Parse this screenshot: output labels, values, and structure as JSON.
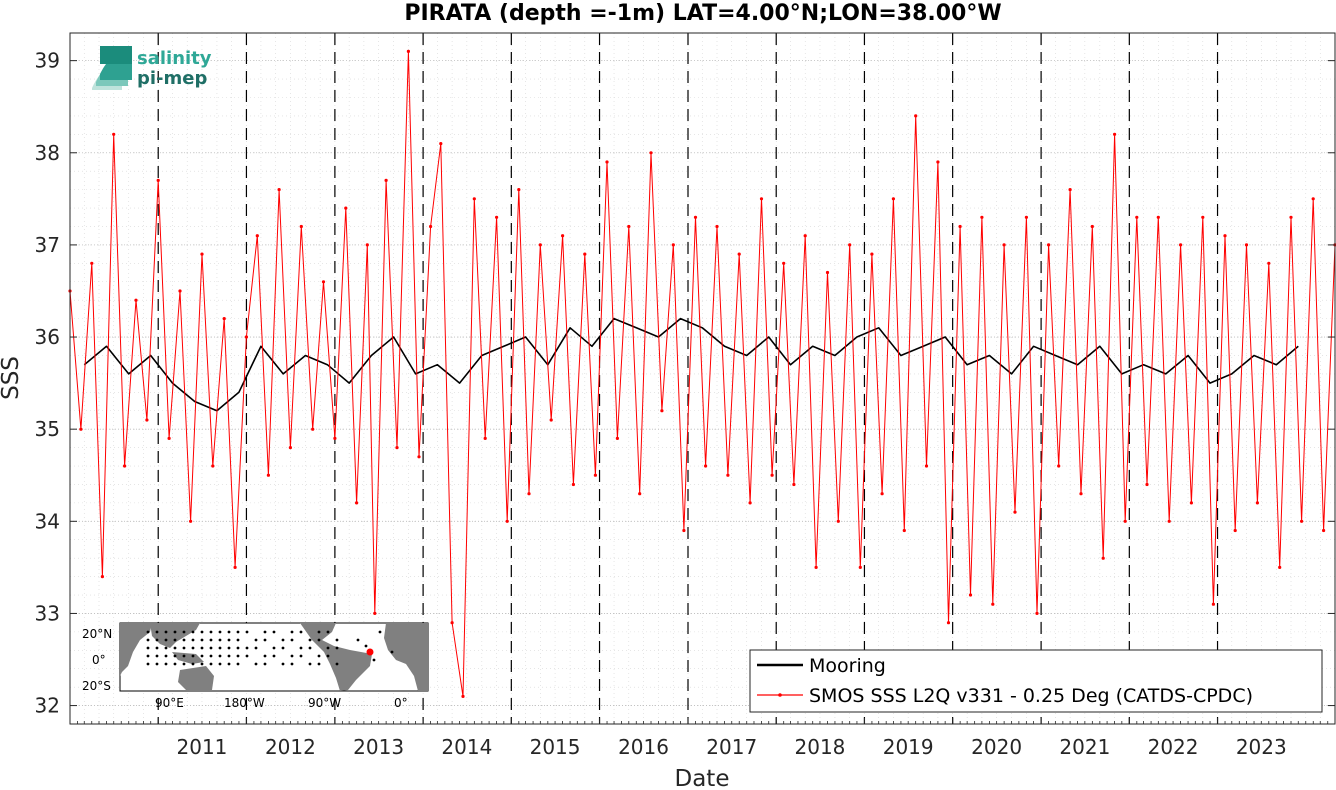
{
  "chart_data": {
    "type": "line",
    "title": "PIRATA (depth =-1m) LAT=4.00°N;LON=38.00°W",
    "xlabel": "Date",
    "ylabel": "SSS",
    "xlim": [
      "2010-01-01",
      "2024-05-01"
    ],
    "ylim": [
      31.8,
      39.3
    ],
    "x_ticks": [
      "2011",
      "2012",
      "2013",
      "2014",
      "2015",
      "2016",
      "2017",
      "2018",
      "2019",
      "2020",
      "2021",
      "2022",
      "2023"
    ],
    "y_ticks": [
      32,
      33,
      34,
      35,
      36,
      37,
      38,
      39
    ],
    "grid": true,
    "year_separators": "dashed vertical lines at each January 1st",
    "legend_position": "bottom-right",
    "series": [
      {
        "name": "Mooring",
        "color": "#000000",
        "style": "solid line",
        "points": [
          [
            "2010-03-01",
            35.7
          ],
          [
            "2010-06-01",
            35.9
          ],
          [
            "2010-09-01",
            35.6
          ],
          [
            "2010-12-01",
            35.8
          ],
          [
            "2011-03-01",
            35.5
          ],
          [
            "2011-06-01",
            35.3
          ],
          [
            "2011-09-01",
            35.2
          ],
          [
            "2011-12-01",
            35.4
          ],
          [
            "2012-03-01",
            35.9
          ],
          [
            "2012-06-01",
            35.6
          ],
          [
            "2012-09-01",
            35.8
          ],
          [
            "2012-12-01",
            35.7
          ],
          [
            "2013-03-01",
            35.5
          ],
          [
            "2013-06-01",
            35.8
          ],
          [
            "2013-09-01",
            36.0
          ],
          [
            "2013-12-01",
            35.6
          ],
          [
            "2014-03-01",
            35.7
          ],
          [
            "2014-06-01",
            35.5
          ],
          [
            "2014-09-01",
            35.8
          ],
          [
            "2014-12-01",
            35.9
          ],
          [
            "2015-03-01",
            36.0
          ],
          [
            "2015-06-01",
            35.7
          ],
          [
            "2015-09-01",
            36.1
          ],
          [
            "2015-12-01",
            35.9
          ],
          [
            "2016-03-01",
            36.2
          ],
          [
            "2016-06-01",
            36.1
          ],
          [
            "2016-09-01",
            36.0
          ],
          [
            "2016-12-01",
            36.2
          ],
          [
            "2017-03-01",
            36.1
          ],
          [
            "2017-06-01",
            35.9
          ],
          [
            "2017-09-01",
            35.8
          ],
          [
            "2017-12-01",
            36.0
          ],
          [
            "2018-03-01",
            35.7
          ],
          [
            "2018-06-01",
            35.9
          ],
          [
            "2018-09-01",
            35.8
          ],
          [
            "2018-12-01",
            36.0
          ],
          [
            "2019-03-01",
            36.1
          ],
          [
            "2019-06-01",
            35.8
          ],
          [
            "2019-09-01",
            35.9
          ],
          [
            "2019-12-01",
            36.0
          ],
          [
            "2020-03-01",
            35.7
          ],
          [
            "2020-06-01",
            35.8
          ],
          [
            "2020-09-01",
            35.6
          ],
          [
            "2020-12-01",
            35.9
          ],
          [
            "2021-03-01",
            35.8
          ],
          [
            "2021-06-01",
            35.7
          ],
          [
            "2021-09-01",
            35.9
          ],
          [
            "2021-12-01",
            35.6
          ],
          [
            "2022-03-01",
            35.7
          ],
          [
            "2022-06-01",
            35.6
          ],
          [
            "2022-09-01",
            35.8
          ],
          [
            "2022-12-01",
            35.5
          ],
          [
            "2023-03-01",
            35.6
          ],
          [
            "2023-06-01",
            35.8
          ],
          [
            "2023-09-01",
            35.7
          ],
          [
            "2023-12-01",
            35.9
          ]
        ]
      },
      {
        "name": "SMOS SSS L2Q v331 - 0.25 Deg (CATDS-CPDC)",
        "color": "#ff0000",
        "style": "solid line with point markers",
        "points": [
          [
            "2010-01-01",
            36.5
          ],
          [
            "2010-02-15",
            35.0
          ],
          [
            "2010-04-01",
            36.8
          ],
          [
            "2010-05-15",
            33.4
          ],
          [
            "2010-07-01",
            38.2
          ],
          [
            "2010-08-15",
            34.6
          ],
          [
            "2010-10-01",
            36.4
          ],
          [
            "2010-11-15",
            35.1
          ],
          [
            "2011-01-01",
            37.7
          ],
          [
            "2011-02-15",
            34.9
          ],
          [
            "2011-04-01",
            36.5
          ],
          [
            "2011-05-15",
            34.0
          ],
          [
            "2011-07-01",
            36.9
          ],
          [
            "2011-08-15",
            34.6
          ],
          [
            "2011-10-01",
            36.2
          ],
          [
            "2011-11-15",
            33.5
          ],
          [
            "2012-01-01",
            36.0
          ],
          [
            "2012-02-15",
            37.1
          ],
          [
            "2012-04-01",
            34.5
          ],
          [
            "2012-05-15",
            37.6
          ],
          [
            "2012-07-01",
            34.8
          ],
          [
            "2012-08-15",
            37.2
          ],
          [
            "2012-10-01",
            35.0
          ],
          [
            "2012-11-15",
            36.6
          ],
          [
            "2013-01-01",
            34.9
          ],
          [
            "2013-02-15",
            37.4
          ],
          [
            "2013-04-01",
            34.2
          ],
          [
            "2013-05-15",
            37.0
          ],
          [
            "2013-06-15",
            33.0
          ],
          [
            "2013-08-01",
            37.7
          ],
          [
            "2013-09-15",
            34.8
          ],
          [
            "2013-11-01",
            39.1
          ],
          [
            "2013-12-15",
            34.7
          ],
          [
            "2014-02-01",
            37.2
          ],
          [
            "2014-03-15",
            38.1
          ],
          [
            "2014-05-01",
            32.9
          ],
          [
            "2014-06-15",
            32.1
          ],
          [
            "2014-08-01",
            37.5
          ],
          [
            "2014-09-15",
            34.9
          ],
          [
            "2014-11-01",
            37.3
          ],
          [
            "2014-12-15",
            34.0
          ],
          [
            "2015-02-01",
            37.6
          ],
          [
            "2015-03-15",
            34.3
          ],
          [
            "2015-05-01",
            37.0
          ],
          [
            "2015-06-15",
            35.1
          ],
          [
            "2015-08-01",
            37.1
          ],
          [
            "2015-09-15",
            34.4
          ],
          [
            "2015-11-01",
            36.9
          ],
          [
            "2015-12-15",
            34.5
          ],
          [
            "2016-02-01",
            37.9
          ],
          [
            "2016-03-15",
            34.9
          ],
          [
            "2016-05-01",
            37.2
          ],
          [
            "2016-06-15",
            34.3
          ],
          [
            "2016-08-01",
            38.0
          ],
          [
            "2016-09-15",
            35.2
          ],
          [
            "2016-11-01",
            37.0
          ],
          [
            "2016-12-15",
            33.9
          ],
          [
            "2017-02-01",
            37.3
          ],
          [
            "2017-03-15",
            34.6
          ],
          [
            "2017-05-01",
            37.2
          ],
          [
            "2017-06-15",
            34.5
          ],
          [
            "2017-08-01",
            36.9
          ],
          [
            "2017-09-15",
            34.2
          ],
          [
            "2017-11-01",
            37.5
          ],
          [
            "2017-12-15",
            34.5
          ],
          [
            "2018-02-01",
            36.8
          ],
          [
            "2018-03-15",
            34.4
          ],
          [
            "2018-05-01",
            37.1
          ],
          [
            "2018-06-15",
            33.5
          ],
          [
            "2018-08-01",
            36.7
          ],
          [
            "2018-09-15",
            34.0
          ],
          [
            "2018-11-01",
            37.0
          ],
          [
            "2018-12-15",
            33.5
          ],
          [
            "2019-02-01",
            36.9
          ],
          [
            "2019-03-15",
            34.3
          ],
          [
            "2019-05-01",
            37.5
          ],
          [
            "2019-06-15",
            33.9
          ],
          [
            "2019-08-01",
            38.4
          ],
          [
            "2019-09-15",
            34.6
          ],
          [
            "2019-11-01",
            37.9
          ],
          [
            "2019-12-15",
            32.9
          ],
          [
            "2020-02-01",
            37.2
          ],
          [
            "2020-03-15",
            33.2
          ],
          [
            "2020-05-01",
            37.3
          ],
          [
            "2020-06-15",
            33.1
          ],
          [
            "2020-08-01",
            37.0
          ],
          [
            "2020-09-15",
            34.1
          ],
          [
            "2020-11-01",
            37.3
          ],
          [
            "2020-12-15",
            33.0
          ],
          [
            "2021-02-01",
            37.0
          ],
          [
            "2021-03-15",
            34.6
          ],
          [
            "2021-05-01",
            37.6
          ],
          [
            "2021-06-15",
            34.3
          ],
          [
            "2021-08-01",
            37.2
          ],
          [
            "2021-09-15",
            33.6
          ],
          [
            "2021-11-01",
            38.2
          ],
          [
            "2021-12-15",
            34.0
          ],
          [
            "2022-02-01",
            37.3
          ],
          [
            "2022-03-15",
            34.4
          ],
          [
            "2022-05-01",
            37.3
          ],
          [
            "2022-06-15",
            34.0
          ],
          [
            "2022-08-01",
            37.0
          ],
          [
            "2022-09-15",
            34.2
          ],
          [
            "2022-11-01",
            37.3
          ],
          [
            "2022-12-15",
            33.1
          ],
          [
            "2023-02-01",
            37.1
          ],
          [
            "2023-03-15",
            33.9
          ],
          [
            "2023-05-01",
            37.0
          ],
          [
            "2023-06-15",
            34.2
          ],
          [
            "2023-08-01",
            36.8
          ],
          [
            "2023-09-15",
            33.5
          ],
          [
            "2023-11-01",
            37.3
          ],
          [
            "2023-12-15",
            34.0
          ],
          [
            "2024-02-01",
            37.5
          ],
          [
            "2024-03-15",
            33.9
          ],
          [
            "2024-05-01",
            37.0
          ]
        ]
      }
    ]
  },
  "legend": {
    "mooring": "Mooring",
    "smos": "SMOS SSS L2Q v331 - 0.25 Deg (CATDS-CPDC)"
  },
  "logo": {
    "line1": "salinity",
    "line2": "pi-mep"
  },
  "inset_map": {
    "lat_labels": [
      "20°N",
      "0°",
      "20°S"
    ],
    "lon_labels": [
      "90°E",
      "180°W",
      "90°W",
      "0°"
    ],
    "marker_color": "#ff0000"
  }
}
